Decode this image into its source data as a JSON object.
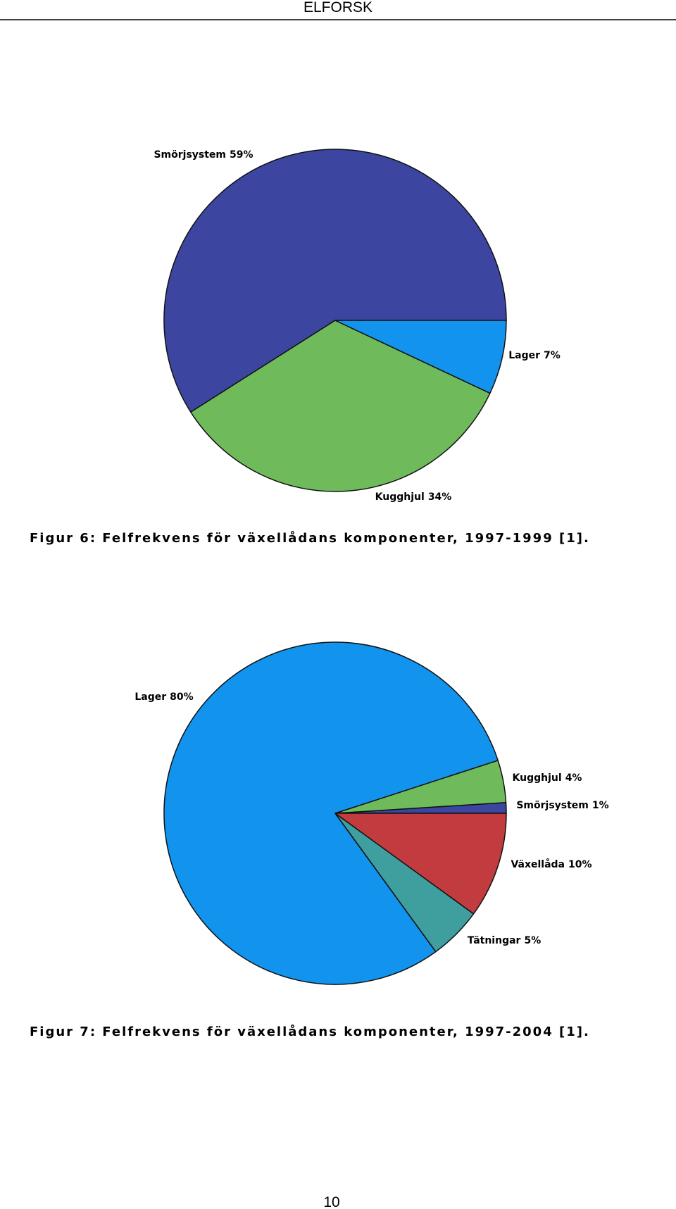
{
  "header": "ELFORSK",
  "chart_data": [
    {
      "type": "pie",
      "categories": [
        "Smörjsystem",
        "Kugghjul",
        "Lager"
      ],
      "values": [
        59,
        34,
        7
      ],
      "value_labels": [
        "59%",
        "34%",
        "7%"
      ],
      "colors": [
        "#3c46a0",
        "#6fbb5c",
        "#1193ee"
      ],
      "caption": "Figur 6: Felfrekvens för växellådans komponenter, 1997-1999 [1]."
    },
    {
      "type": "pie",
      "categories": [
        "Smörjsystem",
        "Kugghjul",
        "Lager",
        "Tätningar",
        "Växellåda"
      ],
      "values": [
        1,
        4,
        80,
        5,
        10
      ],
      "value_labels": [
        "1%",
        "4%",
        "80%",
        "5%",
        "10%"
      ],
      "colors": [
        "#3c46a0",
        "#6fbb5c",
        "#1193ee",
        "#3f9f9e",
        "#c23b3f"
      ],
      "caption": "Figur 7: Felfrekvens för växellådans komponenter, 1997-2004 [1]."
    }
  ],
  "page_number": "10"
}
